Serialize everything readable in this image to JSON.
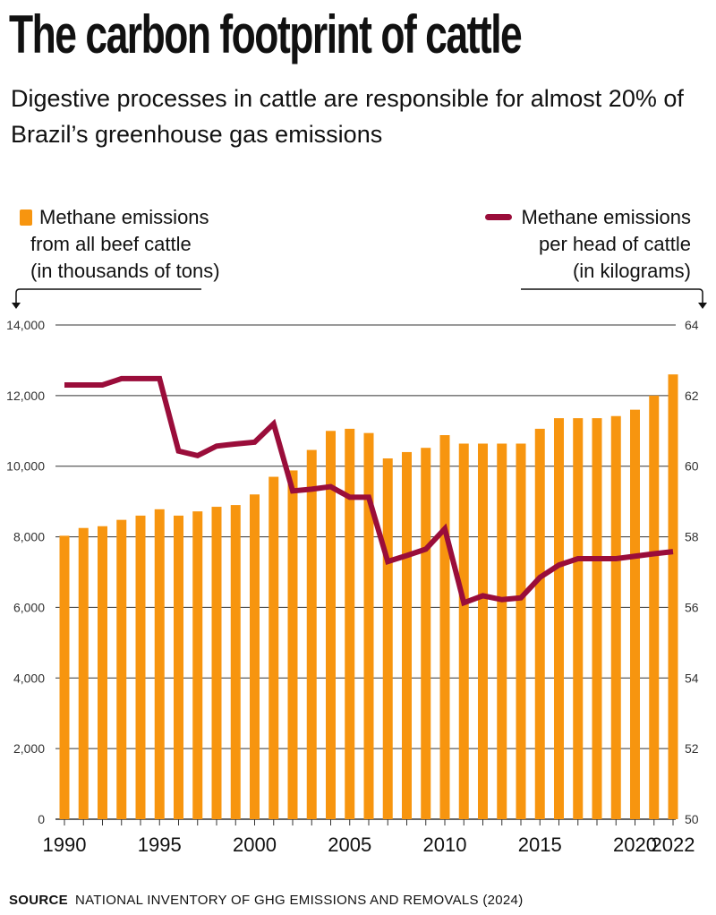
{
  "title": "The carbon footprint of cattle",
  "subtitle": "Digestive processes in cattle are responsible for almost 20% of Brazil’s greenhouse gas emissions",
  "legend": {
    "bars": [
      "Methane emissions",
      "from all beef cattle",
      "(in thousands of tons)"
    ],
    "line": [
      "Methane emissions",
      "per head of cattle",
      "(in kilograms)"
    ]
  },
  "source": {
    "label": "SOURCE",
    "text": "NATIONAL INVENTORY OF GHG EMISSIONS AND REMOVALS (2024)"
  },
  "colors": {
    "bars": "#f7950f",
    "line": "#9a0d3a",
    "grid": "#333333"
  },
  "chart_data": {
    "type": "bar+line",
    "x": [
      1990,
      1991,
      1992,
      1993,
      1994,
      1995,
      1996,
      1997,
      1998,
      1999,
      2000,
      2001,
      2002,
      2003,
      2004,
      2005,
      2006,
      2007,
      2008,
      2009,
      2010,
      2011,
      2012,
      2013,
      2014,
      2015,
      2016,
      2017,
      2018,
      2019,
      2020,
      2021,
      2022
    ],
    "x_tick_labels": [
      "1990",
      "1995",
      "2000",
      "2005",
      "2010",
      "2015",
      "2020",
      "2022"
    ],
    "series": [
      {
        "name": "Methane emissions from all beef cattle (in thousands of tons)",
        "type": "bar",
        "axis": "left",
        "values": [
          8030,
          8250,
          8300,
          8480,
          8600,
          8780,
          8600,
          8720,
          8850,
          8900,
          9200,
          9700,
          9880,
          10460,
          11000,
          11060,
          10940,
          10220,
          10400,
          10520,
          10880,
          10640,
          10640,
          10640,
          10640,
          11060,
          11360,
          11360,
          11360,
          11420,
          11600,
          12000,
          12600
        ]
      },
      {
        "name": "Methane emissions per head of cattle (in kilograms)",
        "type": "line",
        "axis": "right",
        "values": [
          62.3,
          62.3,
          62.3,
          62.48,
          62.48,
          62.48,
          60.43,
          60.3,
          60.57,
          60.63,
          60.68,
          61.2,
          59.3,
          59.35,
          59.42,
          59.12,
          59.12,
          57.3,
          57.47,
          57.65,
          58.23,
          56.13,
          56.33,
          56.22,
          56.27,
          56.85,
          57.2,
          57.38,
          57.38,
          57.38,
          57.45,
          57.52,
          57.58
        ]
      }
    ],
    "y_left": {
      "range": [
        0,
        14000
      ],
      "ticks": [
        "0",
        "2,000",
        "4,000",
        "6,000",
        "8,000",
        "10,000",
        "12,000",
        "14,000"
      ]
    },
    "y_right": {
      "range": [
        50,
        64
      ],
      "ticks": [
        "50",
        "52",
        "54",
        "56",
        "58",
        "60",
        "62",
        "64"
      ]
    },
    "grid": true
  }
}
